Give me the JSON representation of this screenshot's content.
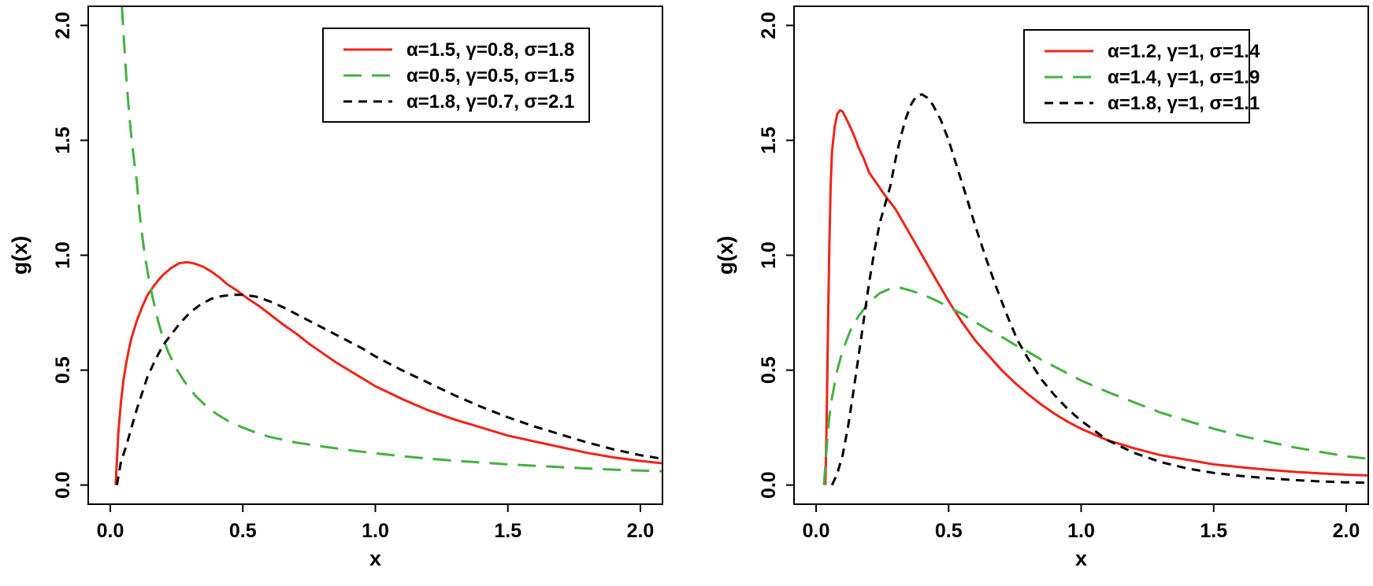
{
  "figure": {
    "description": "Two side-by-side density plots of g(x) versus x",
    "background": "#ffffff"
  },
  "colors": {
    "red": "#ee2417",
    "green": "#43b13f",
    "black": "#000000"
  },
  "chart_data": [
    {
      "type": "line",
      "title": "",
      "xlabel": "x",
      "ylabel": "g(x)",
      "xlim": [
        0,
        2
      ],
      "ylim": [
        0,
        2
      ],
      "grid": false,
      "legend_position": "top-right-inside",
      "xtick_values": [
        0,
        0.5,
        1,
        1.5,
        2
      ],
      "xtick_labels": [
        "0.0",
        "0.5",
        "1.0",
        "1.5",
        "2.0"
      ],
      "ytick_values": [
        0,
        0.5,
        1,
        1.5,
        2
      ],
      "ytick_labels": [
        "0.0",
        "0.5",
        "1.0",
        "1.5",
        "2.0"
      ],
      "series": [
        {
          "name": "α=1.5, γ=0.8, σ=1.8",
          "color": "#ee2417",
          "dash": "solid",
          "points": [
            [
              0.02,
              0
            ],
            [
              0.03,
              0.22
            ],
            [
              0.04,
              0.36
            ],
            [
              0.05,
              0.46
            ],
            [
              0.06,
              0.53
            ],
            [
              0.07,
              0.59
            ],
            [
              0.08,
              0.64
            ],
            [
              0.1,
              0.715
            ],
            [
              0.12,
              0.775
            ],
            [
              0.14,
              0.825
            ],
            [
              0.16,
              0.86
            ],
            [
              0.18,
              0.89
            ],
            [
              0.2,
              0.915
            ],
            [
              0.23,
              0.945
            ],
            [
              0.26,
              0.965
            ],
            [
              0.29,
              0.97
            ],
            [
              0.32,
              0.963
            ],
            [
              0.35,
              0.95
            ],
            [
              0.38,
              0.93
            ],
            [
              0.41,
              0.905
            ],
            [
              0.44,
              0.875
            ],
            [
              0.48,
              0.845
            ],
            [
              0.52,
              0.81
            ],
            [
              0.56,
              0.78
            ],
            [
              0.6,
              0.745
            ],
            [
              0.65,
              0.7
            ],
            [
              0.7,
              0.66
            ],
            [
              0.75,
              0.615
            ],
            [
              0.8,
              0.575
            ],
            [
              0.85,
              0.535
            ],
            [
              0.9,
              0.5
            ],
            [
              0.95,
              0.465
            ],
            [
              1.0,
              0.43
            ],
            [
              1.1,
              0.375
            ],
            [
              1.2,
              0.325
            ],
            [
              1.3,
              0.285
            ],
            [
              1.4,
              0.25
            ],
            [
              1.5,
              0.215
            ],
            [
              1.6,
              0.19
            ],
            [
              1.7,
              0.165
            ],
            [
              1.8,
              0.14
            ],
            [
              1.9,
              0.12
            ],
            [
              2.0,
              0.105
            ],
            [
              2.08,
              0.095
            ]
          ]
        },
        {
          "name": "α=0.5, γ=0.5, σ=1.5",
          "color": "#43b13f",
          "dash": "longdash",
          "points": [
            [
              0.044,
              2.08
            ],
            [
              0.05,
              1.96
            ],
            [
              0.06,
              1.78
            ],
            [
              0.07,
              1.63
            ],
            [
              0.08,
              1.51
            ],
            [
              0.09,
              1.41
            ],
            [
              0.1,
              1.32
            ],
            [
              0.11,
              1.19
            ],
            [
              0.12,
              1.09
            ],
            [
              0.13,
              1.0
            ],
            [
              0.145,
              0.9
            ],
            [
              0.16,
              0.815
            ],
            [
              0.18,
              0.715
            ],
            [
              0.2,
              0.635
            ],
            [
              0.22,
              0.575
            ],
            [
              0.25,
              0.505
            ],
            [
              0.28,
              0.45
            ],
            [
              0.32,
              0.39
            ],
            [
              0.36,
              0.345
            ],
            [
              0.4,
              0.31
            ],
            [
              0.45,
              0.275
            ],
            [
              0.5,
              0.25
            ],
            [
              0.55,
              0.228
            ],
            [
              0.6,
              0.21
            ],
            [
              0.7,
              0.185
            ],
            [
              0.8,
              0.168
            ],
            [
              0.9,
              0.152
            ],
            [
              1.0,
              0.138
            ],
            [
              1.1,
              0.126
            ],
            [
              1.2,
              0.115
            ],
            [
              1.3,
              0.106
            ],
            [
              1.4,
              0.098
            ],
            [
              1.5,
              0.09
            ],
            [
              1.6,
              0.084
            ],
            [
              1.7,
              0.078
            ],
            [
              1.8,
              0.072
            ],
            [
              1.9,
              0.067
            ],
            [
              2.0,
              0.063
            ],
            [
              2.08,
              0.06
            ]
          ]
        },
        {
          "name": "α=1.8, γ=0.7, σ=2.1",
          "color": "#000000",
          "dash": "dash",
          "points": [
            [
              0.025,
              0
            ],
            [
              0.04,
              0.1
            ],
            [
              0.06,
              0.17
            ],
            [
              0.08,
              0.25
            ],
            [
              0.1,
              0.33
            ],
            [
              0.12,
              0.4
            ],
            [
              0.14,
              0.47
            ],
            [
              0.17,
              0.545
            ],
            [
              0.2,
              0.61
            ],
            [
              0.23,
              0.655
            ],
            [
              0.26,
              0.7
            ],
            [
              0.3,
              0.75
            ],
            [
              0.34,
              0.785
            ],
            [
              0.38,
              0.81
            ],
            [
              0.42,
              0.822
            ],
            [
              0.46,
              0.828
            ],
            [
              0.5,
              0.828
            ],
            [
              0.55,
              0.82
            ],
            [
              0.6,
              0.8
            ],
            [
              0.65,
              0.775
            ],
            [
              0.7,
              0.745
            ],
            [
              0.75,
              0.715
            ],
            [
              0.8,
              0.685
            ],
            [
              0.85,
              0.655
            ],
            [
              0.9,
              0.625
            ],
            [
              0.95,
              0.595
            ],
            [
              1.0,
              0.56
            ],
            [
              1.1,
              0.5
            ],
            [
              1.2,
              0.445
            ],
            [
              1.3,
              0.39
            ],
            [
              1.4,
              0.34
            ],
            [
              1.5,
              0.295
            ],
            [
              1.6,
              0.255
            ],
            [
              1.7,
              0.22
            ],
            [
              1.8,
              0.185
            ],
            [
              1.9,
              0.155
            ],
            [
              2.0,
              0.13
            ],
            [
              2.08,
              0.115
            ]
          ]
        }
      ]
    },
    {
      "type": "line",
      "title": "",
      "xlabel": "x",
      "ylabel": "g(x)",
      "xlim": [
        0,
        2
      ],
      "ylim": [
        0,
        2
      ],
      "grid": false,
      "legend_position": "top-right-inside",
      "xtick_values": [
        0,
        0.5,
        1,
        1.5,
        2
      ],
      "xtick_labels": [
        "0.0",
        "0.5",
        "1.0",
        "1.5",
        "2.0"
      ],
      "ytick_values": [
        0,
        0.5,
        1,
        1.5,
        2
      ],
      "ytick_labels": [
        "0.0",
        "0.5",
        "1.0",
        "1.5",
        "2.0"
      ],
      "series": [
        {
          "name": "α=1.2, γ=1, σ=1.4",
          "color": "#ee2417",
          "dash": "solid",
          "points": [
            [
              0.035,
              0
            ],
            [
              0.04,
              0.3
            ],
            [
              0.045,
              0.7
            ],
            [
              0.05,
              1.05
            ],
            [
              0.055,
              1.3
            ],
            [
              0.06,
              1.45
            ],
            [
              0.07,
              1.56
            ],
            [
              0.08,
              1.615
            ],
            [
              0.09,
              1.63
            ],
            [
              0.1,
              1.625
            ],
            [
              0.12,
              1.58
            ],
            [
              0.14,
              1.53
            ],
            [
              0.16,
              1.47
            ],
            [
              0.18,
              1.42
            ],
            [
              0.2,
              1.36
            ],
            [
              0.23,
              1.31
            ],
            [
              0.26,
              1.26
            ],
            [
              0.3,
              1.2
            ],
            [
              0.35,
              1.1
            ],
            [
              0.4,
              1.0
            ],
            [
              0.45,
              0.9
            ],
            [
              0.5,
              0.8
            ],
            [
              0.55,
              0.71
            ],
            [
              0.6,
              0.63
            ],
            [
              0.65,
              0.565
            ],
            [
              0.7,
              0.5
            ],
            [
              0.75,
              0.445
            ],
            [
              0.8,
              0.395
            ],
            [
              0.85,
              0.35
            ],
            [
              0.9,
              0.31
            ],
            [
              0.95,
              0.275
            ],
            [
              1.0,
              0.245
            ],
            [
              1.1,
              0.195
            ],
            [
              1.2,
              0.16
            ],
            [
              1.3,
              0.13
            ],
            [
              1.4,
              0.11
            ],
            [
              1.5,
              0.09
            ],
            [
              1.6,
              0.078
            ],
            [
              1.7,
              0.067
            ],
            [
              1.8,
              0.058
            ],
            [
              1.9,
              0.051
            ],
            [
              2.0,
              0.045
            ],
            [
              2.08,
              0.042
            ]
          ]
        },
        {
          "name": "α=1.4, γ=1, σ=1.9",
          "color": "#43b13f",
          "dash": "longdash",
          "points": [
            [
              0.03,
              0
            ],
            [
              0.04,
              0.17
            ],
            [
              0.05,
              0.3
            ],
            [
              0.06,
              0.38
            ],
            [
              0.08,
              0.5
            ],
            [
              0.1,
              0.585
            ],
            [
              0.13,
              0.675
            ],
            [
              0.16,
              0.735
            ],
            [
              0.2,
              0.795
            ],
            [
              0.24,
              0.835
            ],
            [
              0.28,
              0.855
            ],
            [
              0.32,
              0.858
            ],
            [
              0.36,
              0.845
            ],
            [
              0.4,
              0.83
            ],
            [
              0.45,
              0.805
            ],
            [
              0.5,
              0.775
            ],
            [
              0.55,
              0.745
            ],
            [
              0.6,
              0.71
            ],
            [
              0.65,
              0.675
            ],
            [
              0.7,
              0.645
            ],
            [
              0.75,
              0.61
            ],
            [
              0.8,
              0.58
            ],
            [
              0.85,
              0.545
            ],
            [
              0.9,
              0.515
            ],
            [
              0.95,
              0.485
            ],
            [
              1.0,
              0.455
            ],
            [
              1.1,
              0.405
            ],
            [
              1.2,
              0.36
            ],
            [
              1.3,
              0.315
            ],
            [
              1.4,
              0.28
            ],
            [
              1.5,
              0.245
            ],
            [
              1.6,
              0.215
            ],
            [
              1.7,
              0.19
            ],
            [
              1.8,
              0.165
            ],
            [
              1.9,
              0.145
            ],
            [
              2.0,
              0.125
            ],
            [
              2.08,
              0.115
            ]
          ]
        },
        {
          "name": "α=1.8, γ=1, σ=1.1",
          "color": "#000000",
          "dash": "dash",
          "points": [
            [
              0.06,
              0
            ],
            [
              0.08,
              0.05
            ],
            [
              0.1,
              0.13
            ],
            [
              0.12,
              0.25
            ],
            [
              0.14,
              0.4
            ],
            [
              0.16,
              0.56
            ],
            [
              0.18,
              0.72
            ],
            [
              0.2,
              0.88
            ],
            [
              0.22,
              1.02
            ],
            [
              0.24,
              1.14
            ],
            [
              0.26,
              1.22
            ],
            [
              0.28,
              1.3
            ],
            [
              0.3,
              1.42
            ],
            [
              0.32,
              1.52
            ],
            [
              0.34,
              1.6
            ],
            [
              0.36,
              1.66
            ],
            [
              0.38,
              1.695
            ],
            [
              0.4,
              1.7
            ],
            [
              0.42,
              1.685
            ],
            [
              0.44,
              1.655
            ],
            [
              0.47,
              1.59
            ],
            [
              0.5,
              1.5
            ],
            [
              0.53,
              1.39
            ],
            [
              0.56,
              1.28
            ],
            [
              0.6,
              1.13
            ],
            [
              0.64,
              0.99
            ],
            [
              0.68,
              0.86
            ],
            [
              0.72,
              0.74
            ],
            [
              0.76,
              0.63
            ],
            [
              0.8,
              0.55
            ],
            [
              0.85,
              0.46
            ],
            [
              0.9,
              0.39
            ],
            [
              0.95,
              0.33
            ],
            [
              1.0,
              0.28
            ],
            [
              1.1,
              0.195
            ],
            [
              1.2,
              0.14
            ],
            [
              1.3,
              0.1
            ],
            [
              1.4,
              0.072
            ],
            [
              1.5,
              0.053
            ],
            [
              1.6,
              0.04
            ],
            [
              1.7,
              0.03
            ],
            [
              1.8,
              0.022
            ],
            [
              1.9,
              0.016
            ],
            [
              2.0,
              0.012
            ],
            [
              2.08,
              0.01
            ]
          ]
        }
      ]
    }
  ]
}
